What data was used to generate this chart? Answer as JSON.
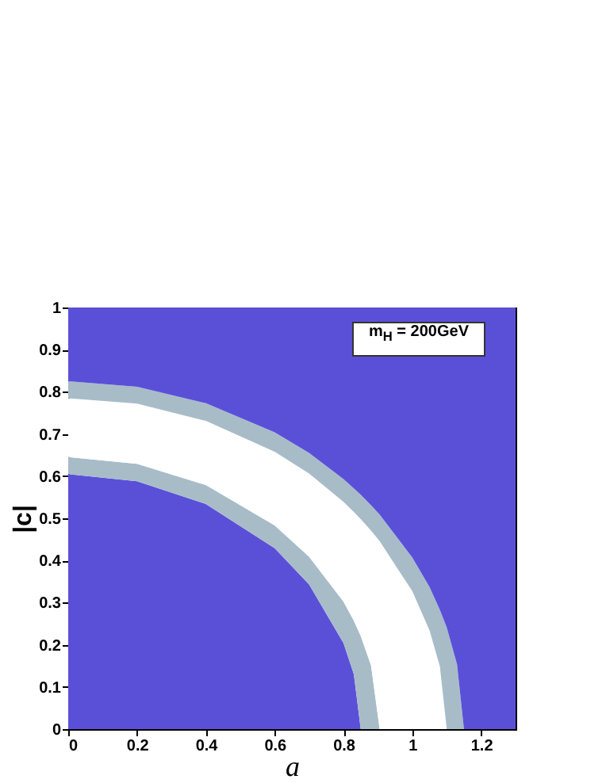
{
  "chart_data": {
    "type": "area",
    "stacked": true,
    "xlabel": "a",
    "ylabel": "|c|",
    "xlim": [
      0,
      1.3
    ],
    "ylim": [
      0,
      1
    ],
    "xticks": [
      0,
      0.2,
      0.4,
      0.6,
      0.8,
      1,
      1.2
    ],
    "yticks": [
      0,
      0.1,
      0.2,
      0.3,
      0.4,
      0.5,
      0.6,
      0.7,
      0.8,
      0.9,
      1
    ],
    "grid": false,
    "annotations": [
      "m$_{H}$ = 200GeV"
    ],
    "x": [
      0,
      0.2,
      0.4,
      0.6,
      0.7,
      0.8,
      0.83,
      0.85,
      0.88,
      0.905,
      1.0,
      1.05,
      1.08,
      1.1,
      1.13,
      1.15,
      1.3
    ],
    "series": [
      {
        "color": "#5a50d8",
        "values": [
          0.605,
          0.588,
          0.534,
          0.429,
          0.343,
          0.204,
          0.13,
          0,
          0,
          0,
          0,
          0,
          0,
          0,
          0,
          0,
          0
        ]
      },
      {
        "color": "#a8bcc8",
        "values": [
          0.04,
          0.041,
          0.045,
          0.054,
          0.066,
          0.098,
          0.127,
          0.221,
          0.151,
          0,
          0,
          0,
          0,
          0,
          0,
          0,
          0
        ]
      },
      {
        "color": "#ffffff",
        "values": [
          0.14,
          0.143,
          0.152,
          0.175,
          0.197,
          0.237,
          0.258,
          0.277,
          0.32,
          0.446,
          0.327,
          0.234,
          0.149,
          0,
          0,
          0,
          0
        ]
      },
      {
        "color": "#a8bcc8",
        "values": [
          0.04,
          0.04,
          0.042,
          0.046,
          0.049,
          0.054,
          0.056,
          0.058,
          0.06,
          0.063,
          0.08,
          0.103,
          0.134,
          0.241,
          0.153,
          0,
          0
        ]
      },
      {
        "color": "#5a50d8",
        "values": [
          0.175,
          0.188,
          0.227,
          0.296,
          0.345,
          0.407,
          0.429,
          0.444,
          0.469,
          0.491,
          0.593,
          0.663,
          0.717,
          0.759,
          0.847,
          1,
          1
        ]
      }
    ]
  }
}
